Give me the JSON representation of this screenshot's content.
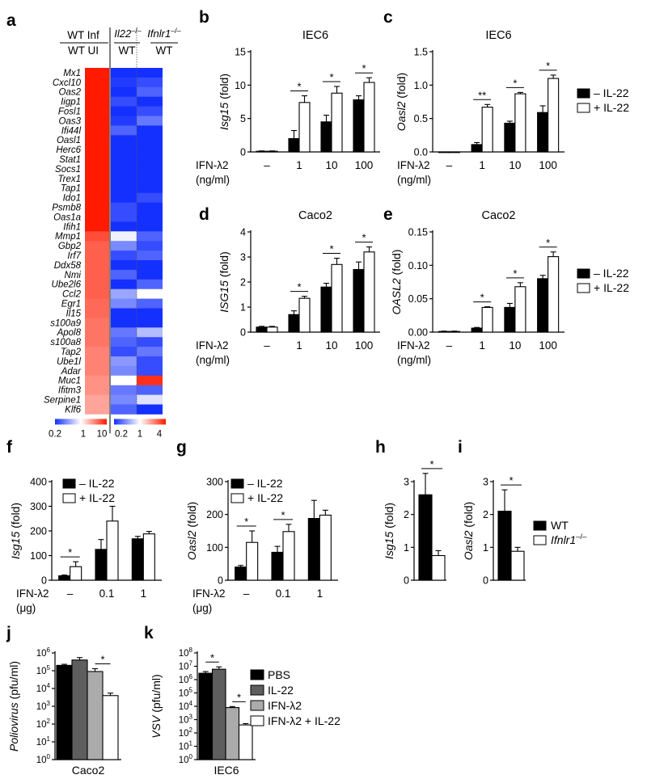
{
  "colors": {
    "control": "#000000",
    "treated": "#ffffff",
    "il22": "#5e5e5e",
    "ifn": "#ababab",
    "heat_low": "#1430ff",
    "heat_mid": "#ffffff",
    "heat_high": "#ff1a00"
  },
  "panel_labels": [
    "a",
    "b",
    "c",
    "d",
    "e",
    "f",
    "g",
    "h",
    "i",
    "j",
    "k"
  ],
  "heatmap": {
    "header": {
      "inf": "WT Inf",
      "ui": "WT UI",
      "il22_ko": "Il22",
      "il22_ko_sup": "–/–",
      "ifnlr1_ko": "Ifnlr1",
      "ifnlr1_ko_sup": "–/–",
      "wt_a": "WT",
      "wt_b": "WT"
    },
    "genes": [
      "Mx1",
      "Cxcl10",
      "Oas2",
      "Iigp1",
      "Fosl1",
      "Oas3",
      "Ifi44l",
      "Oasl1",
      "Herc6",
      "Stat1",
      "Socs1",
      "Trex1",
      "Tap1",
      "Ido1",
      "Psmb8",
      "Oas1a",
      "Ifih1",
      "Mmp1",
      "Gbp2",
      "Irf7",
      "Ddx58",
      "Nmi",
      "Ube2l6",
      "Ccl2",
      "Egr1",
      "Il15",
      "s100a9",
      "Apol8",
      "s100a8",
      "Tap2",
      "Ube1l",
      "Adar",
      "Muc1",
      "Ifitm3",
      "Serpine1",
      "Klf6"
    ],
    "col1_fold": [
      10,
      10,
      10,
      10,
      10,
      10,
      10,
      10,
      10,
      10,
      10,
      10,
      10,
      10,
      10,
      10,
      10,
      6,
      5,
      5,
      5,
      5,
      5,
      5,
      4.5,
      4.5,
      4,
      4,
      4,
      3.5,
      3.5,
      3.5,
      3,
      3,
      2.5,
      2.5
    ],
    "col2_fold": [
      0.2,
      0.22,
      0.2,
      0.25,
      0.2,
      0.22,
      0.3,
      0.2,
      0.2,
      0.2,
      0.2,
      0.2,
      0.2,
      0.2,
      0.25,
      0.25,
      0.2,
      0.9,
      0.4,
      0.25,
      0.2,
      0.3,
      0.2,
      0.5,
      0.4,
      0.2,
      0.2,
      0.35,
      0.3,
      0.25,
      0.45,
      0.4,
      1.0,
      0.35,
      0.4,
      0.3
    ],
    "col3_fold": [
      0.2,
      0.25,
      0.3,
      0.2,
      0.25,
      0.35,
      0.2,
      0.2,
      0.2,
      0.2,
      0.2,
      0.2,
      0.2,
      0.25,
      0.2,
      0.2,
      0.2,
      0.3,
      0.25,
      0.3,
      0.2,
      0.2,
      0.3,
      1,
      0.3,
      0.2,
      0.2,
      0.6,
      0.25,
      0.35,
      0.25,
      0.25,
      3.5,
      0.3,
      0.8,
      0.2
    ],
    "scale1": {
      "ticks": [
        "0.2",
        "1",
        "10"
      ]
    },
    "scale2": {
      "ticks": [
        "0.2",
        "1",
        "4"
      ]
    }
  },
  "legends": {
    "il22": {
      "minus": "– IL-22",
      "plus": "+ IL-22"
    },
    "geno": {
      "wt": "WT",
      "ko": "Ifnlr1",
      "ko_sup": "–/–"
    },
    "virus": [
      "PBS",
      "IL-22",
      "IFN-λ2",
      "IFN-λ2 + IL-22"
    ]
  },
  "x_axis_labels": {
    "ifn": "IFN-λ2",
    "ngml": "(ng/ml)",
    "ug": "(μg)",
    "dose_ng": [
      "–",
      "1",
      "10",
      "100"
    ],
    "dose_ug": [
      "–",
      "0.1",
      "1"
    ]
  },
  "chart_data": [
    {
      "id": "b",
      "type": "bar",
      "title": "IEC6",
      "ylabel": "Isg15 (fold)",
      "ylim": [
        0,
        15
      ],
      "yticks": [
        "0",
        "5",
        "10",
        "15"
      ],
      "categories": [
        "–",
        "1",
        "10",
        "100"
      ],
      "series": [
        {
          "name": "– IL-22",
          "values": [
            0.1,
            2.0,
            4.5,
            7.8
          ],
          "errors": [
            0.05,
            1.2,
            1.0,
            0.6
          ]
        },
        {
          "name": "+ IL-22",
          "values": [
            0.1,
            7.4,
            8.8,
            10.4
          ],
          "errors": [
            0.05,
            1.0,
            1.0,
            0.7
          ]
        }
      ],
      "sig": [
        "",
        "*",
        "*",
        "*"
      ]
    },
    {
      "id": "c",
      "type": "bar",
      "title": "IEC6",
      "ylabel": "Oasl2 (fold)",
      "ylim": [
        0,
        1.5
      ],
      "yticks": [
        "0.0",
        "0.5",
        "1.0",
        "1.5"
      ],
      "categories": [
        "–",
        "1",
        "10",
        "100"
      ],
      "series": [
        {
          "name": "– IL-22",
          "values": [
            0.0,
            0.11,
            0.43,
            0.59
          ],
          "errors": [
            0.0,
            0.03,
            0.03,
            0.1
          ]
        },
        {
          "name": "+ IL-22",
          "values": [
            0.0,
            0.67,
            0.87,
            1.1
          ],
          "errors": [
            0.0,
            0.04,
            0.02,
            0.05
          ]
        }
      ],
      "sig": [
        "",
        "**",
        "*",
        "*"
      ]
    },
    {
      "id": "d",
      "type": "bar",
      "title": "Caco2",
      "ylabel": "ISG15 (fold)",
      "ylim": [
        0,
        4
      ],
      "yticks": [
        "0",
        "1",
        "2",
        "3",
        "4"
      ],
      "categories": [
        "–",
        "1",
        "10",
        "100"
      ],
      "series": [
        {
          "name": "– IL-22",
          "values": [
            0.2,
            0.7,
            1.8,
            2.5
          ],
          "errors": [
            0.03,
            0.15,
            0.15,
            0.3
          ]
        },
        {
          "name": "+ IL-22",
          "values": [
            0.2,
            1.35,
            2.7,
            3.2
          ],
          "errors": [
            0.03,
            0.08,
            0.25,
            0.2
          ]
        }
      ],
      "sig": [
        "",
        "*",
        "*",
        "*"
      ]
    },
    {
      "id": "e",
      "type": "bar",
      "title": "Caco2",
      "ylabel": "OASL2 (fold)",
      "ylim": [
        0,
        0.15
      ],
      "yticks": [
        "0.00",
        "0.05",
        "0.10",
        "0.15"
      ],
      "categories": [
        "–",
        "1",
        "10",
        "100"
      ],
      "series": [
        {
          "name": "– IL-22",
          "values": [
            0.001,
            0.006,
            0.037,
            0.08
          ],
          "errors": [
            0.0005,
            0.001,
            0.006,
            0.005
          ]
        },
        {
          "name": "+ IL-22",
          "values": [
            0.001,
            0.037,
            0.068,
            0.113
          ],
          "errors": [
            0.0005,
            0.001,
            0.006,
            0.007
          ]
        }
      ],
      "sig": [
        "",
        "*",
        "*",
        "*"
      ]
    },
    {
      "id": "f",
      "type": "bar",
      "ylabel": "Isg15 (fold)",
      "ylim": [
        0,
        400
      ],
      "yticks": [
        "0",
        "100",
        "200",
        "300",
        "400"
      ],
      "categories": [
        "–",
        "0.1",
        "1"
      ],
      "series": [
        {
          "name": "– IL-22",
          "values": [
            18,
            125,
            168
          ],
          "errors": [
            3,
            40,
            10
          ]
        },
        {
          "name": "+ IL-22",
          "values": [
            55,
            240,
            188
          ],
          "errors": [
            20,
            60,
            10
          ]
        }
      ],
      "sig": [
        "*",
        "",
        ""
      ]
    },
    {
      "id": "g",
      "type": "bar",
      "ylabel": "Oasl2 (fold)",
      "ylim": [
        0,
        300
      ],
      "yticks": [
        "0",
        "100",
        "200",
        "300"
      ],
      "categories": [
        "–",
        "0.1",
        "1"
      ],
      "series": [
        {
          "name": "– IL-22",
          "values": [
            40,
            85,
            188
          ],
          "errors": [
            5,
            18,
            55
          ]
        },
        {
          "name": "+ IL-22",
          "values": [
            115,
            148,
            198
          ],
          "errors": [
            35,
            22,
            15
          ]
        }
      ],
      "sig": [
        "*",
        "*",
        ""
      ]
    },
    {
      "id": "h",
      "type": "bar",
      "ylabel": "Isg15 (fold)",
      "ylim": [
        0,
        3
      ],
      "yticks": [
        "0",
        "1",
        "2",
        "3"
      ],
      "categories": [
        "WT",
        "Ifnlr1–/–"
      ],
      "values": [
        2.6,
        0.75
      ],
      "errors": [
        0.65,
        0.15
      ],
      "sig": "*"
    },
    {
      "id": "i",
      "type": "bar",
      "ylabel": "Oasl2 (fold)",
      "ylim": [
        0,
        3
      ],
      "yticks": [
        "0",
        "1",
        "2",
        "3"
      ],
      "categories": [
        "WT",
        "Ifnlr1–/–"
      ],
      "values": [
        2.1,
        0.88
      ],
      "errors": [
        0.65,
        0.12
      ],
      "sig": "*"
    },
    {
      "id": "j",
      "type": "bar",
      "log": true,
      "ylabel": "Poliovirus (pfu/ml)",
      "xlabel": "Caco2",
      "ylim": [
        1,
        1000000
      ],
      "yticks": [
        "10^0",
        "10^1",
        "10^2",
        "10^3",
        "10^4",
        "10^5",
        "10^6"
      ],
      "categories": [
        "PBS",
        "IL-22",
        "IFN-λ2",
        "IFN-λ2 + IL-22"
      ],
      "values": [
        200000,
        400000,
        90000,
        4000
      ],
      "errors": [
        30000,
        150000,
        40000,
        1500
      ],
      "sig_between": [
        2,
        3
      ]
    },
    {
      "id": "k",
      "type": "bar",
      "log": true,
      "ylabel": "VSV (pfu/ml)",
      "xlabel": "IEC6",
      "ylim": [
        1,
        100000000
      ],
      "yticks": [
        "10^0",
        "10^1",
        "10^2",
        "10^3",
        "10^4",
        "10^5",
        "10^6",
        "10^7",
        "10^8"
      ],
      "categories": [
        "PBS",
        "IL-22",
        "IFN-λ2",
        "IFN-λ2 + IL-22"
      ],
      "values": [
        3000000,
        6000000,
        8000,
        400
      ],
      "errors": [
        1000000,
        3000000,
        1500,
        100
      ],
      "sig_pairs": [
        [
          0,
          1
        ],
        [
          2,
          3
        ]
      ]
    }
  ]
}
